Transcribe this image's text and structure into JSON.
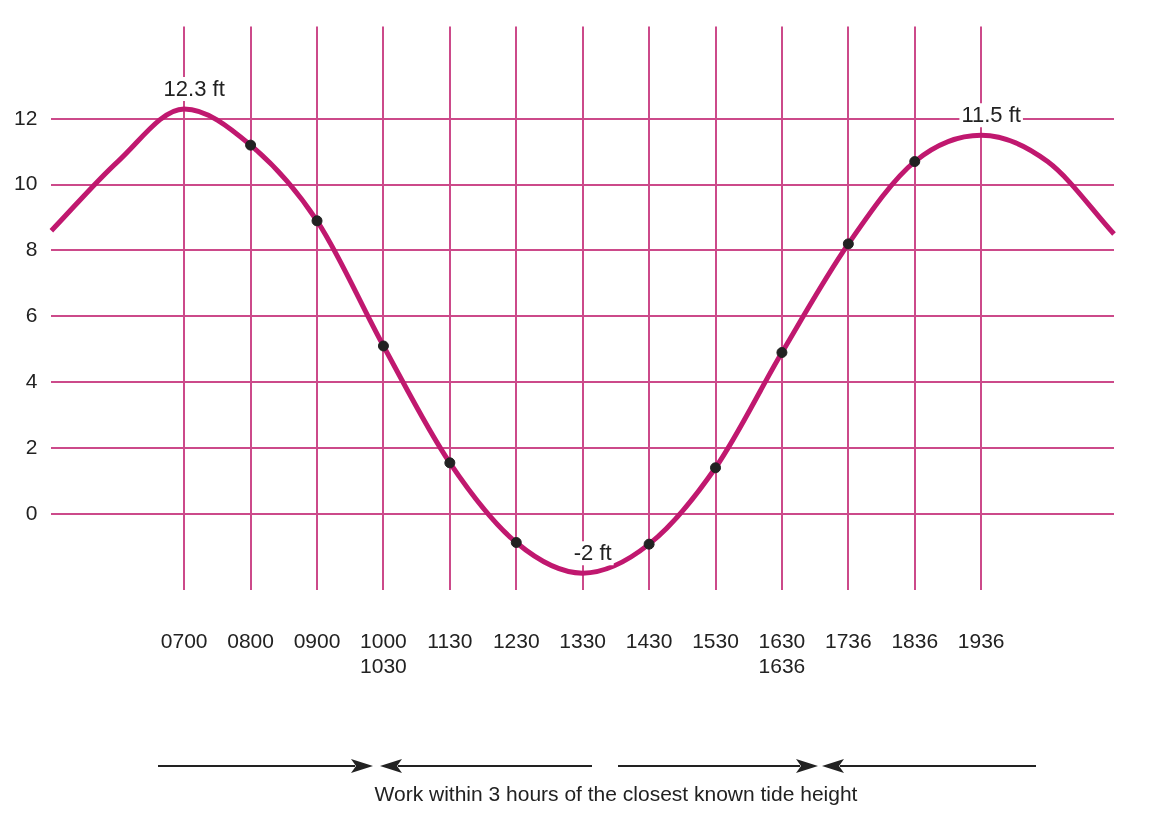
{
  "chart_data": {
    "type": "line",
    "categories": [
      null,
      null,
      "0700",
      "0800",
      "0900",
      "1000\n1030",
      "1130",
      "1230",
      "1330",
      "1430",
      "1530",
      "1630\n1636",
      "1736",
      "1836",
      "1936",
      null,
      null
    ],
    "series": [
      {
        "color": "#c0186f",
        "marker": "none",
        "values": [
          8.6,
          10.7,
          12.3,
          11.2,
          8.9,
          5.1,
          1.55,
          -0.87,
          -1.8,
          -0.92,
          1.4,
          4.9,
          8.2,
          10.7,
          11.5,
          10.7,
          8.5
        ]
      },
      {
        "type": "scatter",
        "color": "#222222",
        "marker": "circle",
        "values": [
          null,
          null,
          null,
          11.2,
          8.9,
          5.1,
          1.55,
          -0.87,
          null,
          -0.92,
          1.4,
          4.9,
          8.2,
          10.7,
          null,
          null,
          null
        ]
      }
    ],
    "ylim": [
      -2.3,
      14.8
    ],
    "yticks": [
      0,
      2,
      4,
      6,
      8,
      10,
      12
    ],
    "grid": true,
    "annotations": [
      {
        "text": "12.3 ft",
        "x": "0700",
        "y": 12.3
      },
      {
        "text": "-2 ft",
        "x": "1330",
        "y": -1.8
      },
      {
        "text": "11.5 ft",
        "x": "1936",
        "y": 11.5
      },
      "Work within 3 hours of the closest known tide height"
    ]
  }
}
